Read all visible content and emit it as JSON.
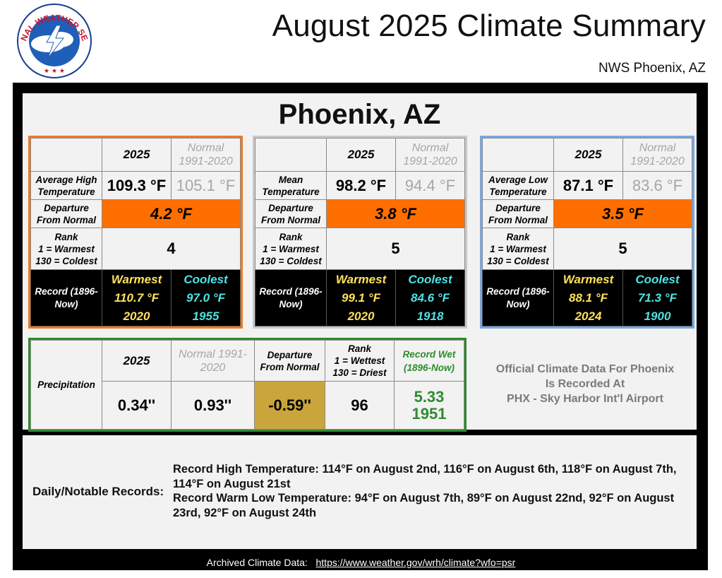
{
  "header": {
    "logo_text": "NATIONAL WEATHER SERVICE",
    "title": "August 2025 Climate Summary",
    "subtitle": "NWS Phoenix, AZ"
  },
  "city": "Phoenix, AZ",
  "temp_tables": [
    {
      "col_year": "2025",
      "col_normal_1": "Normal",
      "col_normal_2": "1991-2020",
      "metric_1": "Average High",
      "metric_2": "Temperature",
      "value": "109.3 °F",
      "normal": "105.1 °F",
      "dep_label_1": "Departure",
      "dep_label_2": "From Normal",
      "departure": "4.2 °F",
      "rank_label_1": "Rank",
      "rank_label_2": "1 = Warmest",
      "rank_label_3": "130 = Coldest",
      "rank": "4",
      "record_label_1": "Record (1896-",
      "record_label_2": "Now)",
      "warmest_label": "Warmest",
      "warmest_value": "110.7 °F",
      "warmest_year": "2020",
      "coolest_label": "Coolest",
      "coolest_value": "97.0 °F",
      "coolest_year": "1955"
    },
    {
      "col_year": "2025",
      "col_normal_1": "Normal",
      "col_normal_2": "1991-2020",
      "metric_1": "Mean",
      "metric_2": "Temperature",
      "value": "98.2 °F",
      "normal": "94.4 °F",
      "dep_label_1": "Departure",
      "dep_label_2": "From Normal",
      "departure": "3.8 °F",
      "rank_label_1": "Rank",
      "rank_label_2": "1 = Warmest",
      "rank_label_3": "130 = Coldest",
      "rank": "5",
      "record_label_1": "Record (1896-",
      "record_label_2": "Now)",
      "warmest_label": "Warmest",
      "warmest_value": "99.1 °F",
      "warmest_year": "2020",
      "coolest_label": "Coolest",
      "coolest_value": "84.6 °F",
      "coolest_year": "1918"
    },
    {
      "col_year": "2025",
      "col_normal_1": "Normal",
      "col_normal_2": "1991-2020",
      "metric_1": "Average Low",
      "metric_2": "Temperature",
      "value": "87.1 °F",
      "normal": "83.6 °F",
      "dep_label_1": "Departure",
      "dep_label_2": "From Normal",
      "departure": "3.5 °F",
      "rank_label_1": "Rank",
      "rank_label_2": "1 = Warmest",
      "rank_label_3": "130 = Coldest",
      "rank": "5",
      "record_label_1": "Record (1896-",
      "record_label_2": "Now)",
      "warmest_label": "Warmest",
      "warmest_value": "88.1 °F",
      "warmest_year": "2024",
      "coolest_label": "Coolest",
      "coolest_value": "71.3 °F",
      "coolest_year": "1900"
    }
  ],
  "precip": {
    "row_label": "Precipitation",
    "col_year": "2025",
    "col_normal_1": "Normal 1991-",
    "col_normal_2": "2020",
    "col_dep_1": "Departure",
    "col_dep_2": "From Normal",
    "col_rank_1": "Rank",
    "col_rank_2": "1 = Wettest",
    "col_rank_3": "130 = Driest",
    "col_rec_1": "Record Wet",
    "col_rec_2": "(1896-Now)",
    "value": "0.34''",
    "normal": "0.93''",
    "departure": "-0.59''",
    "rank": "96",
    "record_value": "5.33",
    "record_year": "1951"
  },
  "official": {
    "line1": "Official Climate Data For Phoenix",
    "line2": "Is Recorded At",
    "line3": "PHX - Sky Harbor Int'l Airport"
  },
  "daily": {
    "label": "Daily/Notable Records:",
    "line1": "Record High Temperature: 114°F on August 2nd, 116°F on August 6th, 118°F on August 7th, 114°F on August 21st",
    "line2": "Record Warm Low Temperature: 94°F on August 7th, 89°F on August 22nd, 92°F on August 23rd, 92°F on August 24th"
  },
  "footer": {
    "label": "Archived Climate Data:",
    "url": "https://www.weather.gov/wrh/climate?wfo=psr"
  },
  "colors": {
    "departure_warm": "#ff6f00",
    "departure_dry": "#c9a53b",
    "warmest_text": "#ffe25c",
    "coolest_text": "#4fe3e3",
    "record_wet_text": "#2e8b2e",
    "high_table_border": "#f07a22",
    "mean_table_border": "#c8c8c8",
    "low_table_border": "#7aa7e0",
    "precip_table_border": "#2e8b2e"
  }
}
